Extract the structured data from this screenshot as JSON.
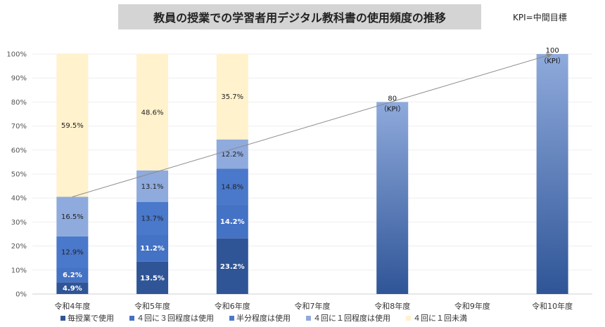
{
  "chart_data": {
    "type": "bar",
    "stacked": true,
    "title": "教員の授業での学習者用デジタル教科書の使用頻度の推移",
    "note": "KPI=中間目標",
    "categories": [
      "令和4年度",
      "令和5年度",
      "令和6年度",
      "令和7年度",
      "令和8年度",
      "令和9年度",
      "令和10年度"
    ],
    "ylim": [
      0,
      100
    ],
    "yticks": [
      "0%",
      "10%",
      "20%",
      "30%",
      "40%",
      "50%",
      "60%",
      "70%",
      "80%",
      "90%",
      "100%"
    ],
    "series": [
      {
        "name": "毎授業で使用",
        "color": "#2f5597",
        "labelColor": "#ffffff",
        "values": [
          4.9,
          13.5,
          23.2,
          null,
          null,
          null,
          null
        ],
        "labels": [
          "4.9%",
          "13.5%",
          "23.2%",
          "",
          "",
          "",
          ""
        ]
      },
      {
        "name": "４回に３回程度は使用",
        "color": "#4472c4",
        "labelColor": "#ffffff",
        "values": [
          6.2,
          11.2,
          14.2,
          null,
          null,
          null,
          null
        ],
        "labels": [
          "6.2%",
          "11.2%",
          "14.2%",
          "",
          "",
          "",
          ""
        ]
      },
      {
        "name": "半分程度は使用",
        "color": "#4a78cb",
        "labelColor": "#222222",
        "values": [
          12.9,
          13.7,
          14.8,
          null,
          null,
          null,
          null
        ],
        "labels": [
          "12.9%",
          "13.7%",
          "14.8%",
          "",
          "",
          "",
          ""
        ]
      },
      {
        "name": "４回に１回程度は使用",
        "color": "#8faadc",
        "labelColor": "#222222",
        "values": [
          16.5,
          13.1,
          12.2,
          null,
          null,
          null,
          null
        ],
        "labels": [
          "16.5%",
          "13.1%",
          "12.2%",
          "",
          "",
          "",
          ""
        ]
      },
      {
        "name": "４回に１回未満",
        "color": "#fff2cc",
        "labelColor": "#222222",
        "values": [
          59.5,
          48.6,
          35.7,
          null,
          null,
          null,
          null
        ],
        "labels": [
          "59.5%",
          "48.6%",
          "35.7%",
          "",
          "",
          "",
          ""
        ]
      }
    ],
    "kpi_bars": [
      {
        "category": "令和8年度",
        "value": 80,
        "label": "80",
        "sublabel": "（KPI）"
      },
      {
        "category": "令和10年度",
        "value": 100,
        "label": "100",
        "sublabel": "（KPI）"
      }
    ],
    "trend_line": {
      "from": {
        "category": "令和4年度",
        "value": 40.5
      },
      "to": {
        "category": "令和10年度",
        "value": 100
      }
    }
  }
}
